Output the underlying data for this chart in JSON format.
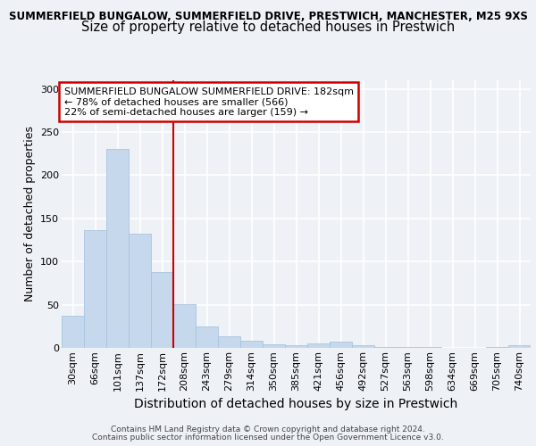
{
  "title_line1": "SUMMERFIELD BUNGALOW, SUMMERFIELD DRIVE, PRESTWICH, MANCHESTER, M25 9XS",
  "title_line2": "Size of property relative to detached houses in Prestwich",
  "xlabel": "Distribution of detached houses by size in Prestwich",
  "ylabel": "Number of detached properties",
  "categories": [
    "30sqm",
    "66sqm",
    "101sqm",
    "137sqm",
    "172sqm",
    "208sqm",
    "243sqm",
    "279sqm",
    "314sqm",
    "350sqm",
    "385sqm",
    "421sqm",
    "456sqm",
    "492sqm",
    "527sqm",
    "563sqm",
    "598sqm",
    "634sqm",
    "669sqm",
    "705sqm",
    "740sqm"
  ],
  "values": [
    37,
    136,
    230,
    132,
    88,
    51,
    25,
    13,
    8,
    4,
    3,
    5,
    7,
    3,
    1,
    1,
    1,
    0,
    0,
    1,
    3
  ],
  "bar_color": "#c5d8ec",
  "bar_edge_color": "#a8c4e0",
  "red_line_x": 4.5,
  "annotation_text_line1": "SUMMERFIELD BUNGALOW SUMMERFIELD DRIVE: 182sqm",
  "annotation_text_line2": "← 78% of detached houses are smaller (566)",
  "annotation_text_line3": "22% of semi-detached houses are larger (159) →",
  "annotation_box_color": "#ffffff",
  "annotation_border_color": "#cc0000",
  "ylim": [
    0,
    310
  ],
  "yticks": [
    0,
    50,
    100,
    150,
    200,
    250,
    300
  ],
  "footer_line1": "Contains HM Land Registry data © Crown copyright and database right 2024.",
  "footer_line2": "Contains public sector information licensed under the Open Government Licence v3.0.",
  "bg_color": "#eef2f7",
  "grid_color": "#ffffff",
  "title1_fontsize": 8.5,
  "title2_fontsize": 10.5,
  "annot_fontsize": 8.0,
  "ylabel_fontsize": 9,
  "xlabel_fontsize": 10,
  "tick_fontsize": 8,
  "footer_fontsize": 6.5
}
